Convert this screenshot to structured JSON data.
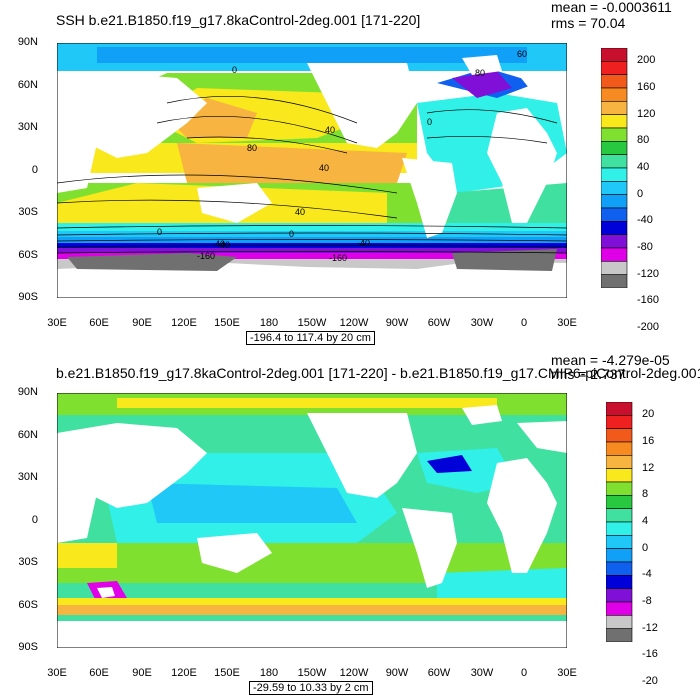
{
  "panel1": {
    "title": "SSH b.e21.B1850.f19_g17.8kaControl-2deg.001 [171-220]",
    "mean_text": "mean = -0.0003611",
    "rms_text": "rms = 70.04",
    "range_text": "-196.4 to 117.4 by 20 cm",
    "colorbar_labels": [
      "200",
      "160",
      "120",
      "80",
      "40",
      "0",
      "-40",
      "-80",
      "-120",
      "-160",
      "-200"
    ],
    "colorbar_colors": [
      "#c8102e",
      "#ee2020",
      "#f25a1c",
      "#f78a20",
      "#f8b441",
      "#f8e81c",
      "#80e030",
      "#28c840",
      "#40e0a0",
      "#30f0e8",
      "#20c8f8",
      "#10a0f8",
      "#1060f0",
      "#0000d8",
      "#8010d8",
      "#e000e8",
      "#c8c8c8",
      "#707070"
    ],
    "contour_labels": [
      "0",
      "40",
      "80",
      "40",
      "40",
      "0",
      "40",
      "0",
      "-40",
      "-160",
      "-40",
      "-160",
      "0",
      "80",
      "60"
    ]
  },
  "panel2": {
    "title": "b.e21.B1850.f19_g17.8kaControl-2deg.001 [171-220] - b.e21.B1850.f19_g17.CMIP6-piControl-2deg.001",
    "mean_text": "mean = -4.279e-05",
    "rms_text": "rms = 2.737",
    "range_text": "-29.59 to 10.33 by 2 cm",
    "colorbar_labels": [
      "20",
      "16",
      "12",
      "8",
      "4",
      "0",
      "-4",
      "-8",
      "-12",
      "-16",
      "-20"
    ],
    "colorbar_colors": [
      "#c8102e",
      "#ee2020",
      "#f25a1c",
      "#f78a20",
      "#f8b441",
      "#f8e81c",
      "#80e030",
      "#28c840",
      "#40e0a0",
      "#30f0e8",
      "#20c8f8",
      "#10a0f8",
      "#1060f0",
      "#0000d8",
      "#8010d8",
      "#e000e8",
      "#c8c8c8",
      "#707070"
    ]
  },
  "lat_labels": [
    "90N",
    "60N",
    "30N",
    "0",
    "30S",
    "60S",
    "90S"
  ],
  "lon_labels": [
    "30E",
    "60E",
    "90E",
    "120E",
    "150E",
    "180",
    "150W",
    "120W",
    "90W",
    "60W",
    "30W",
    "0",
    "30E"
  ]
}
